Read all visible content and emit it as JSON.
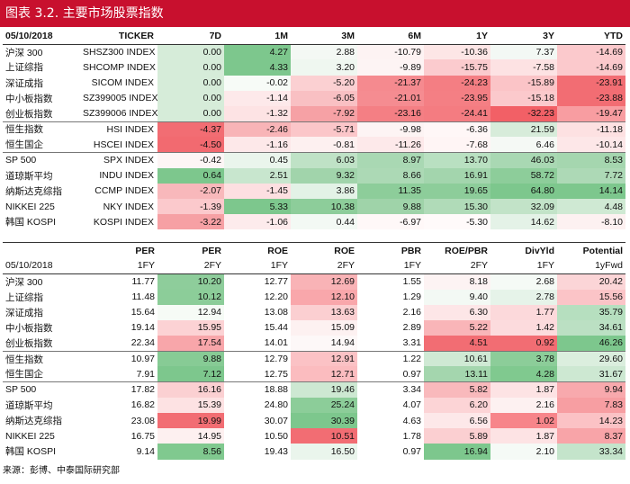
{
  "title": "图表 3.2. 主要市场股票指数",
  "returns": {
    "date": "05/10/2018",
    "headers": [
      "TICKER",
      "7D",
      "1M",
      "3M",
      "6M",
      "1Y",
      "3Y",
      "YTD"
    ],
    "rows": [
      {
        "name": "沪深 300",
        "ticker": "SHSZ300 INDEX",
        "values": [
          "0.00",
          "4.27",
          "2.88",
          "-10.79",
          "-10.36",
          "7.37",
          "-14.69"
        ],
        "colors": [
          "#d6ecd9",
          "#7dc78d",
          "#f4f8f4",
          "#fdf3f3",
          "#fde6e6",
          "#f3f8f4",
          "#fbc9cc"
        ]
      },
      {
        "name": "上证综指",
        "ticker": "SHCOMP INDEX",
        "values": [
          "0.00",
          "4.33",
          "3.20",
          "-9.89",
          "-15.75",
          "-7.58",
          "-14.69"
        ],
        "colors": [
          "#d6ecd9",
          "#7dc78d",
          "#eff7f0",
          "#fdf4f4",
          "#fbcbce",
          "#fde2e3",
          "#fbc9cc"
        ]
      },
      {
        "name": "深证成指",
        "ticker": "SICOM INDEX",
        "values": [
          "0.00",
          "-0.02",
          "-5.20",
          "-21.37",
          "-24.23",
          "-15.89",
          "-23.91"
        ],
        "colors": [
          "#d6ecd9",
          "#f7fbf7",
          "#fbd0d2",
          "#f58a8f",
          "#f47e83",
          "#fbc4c7",
          "#f26d73"
        ]
      },
      {
        "name": "中小板指数",
        "ticker": "SZ399005 INDEX",
        "values": [
          "0.00",
          "-1.14",
          "-6.05",
          "-21.01",
          "-23.95",
          "-15.18",
          "-23.88"
        ],
        "colors": [
          "#d6ecd9",
          "#fde9ea",
          "#f9c0c3",
          "#f58c91",
          "#f47f84",
          "#fbc9cc",
          "#f26d73"
        ]
      },
      {
        "name": "创业板指数",
        "ticker": "SZ399006 INDEX",
        "values": [
          "0.00",
          "-1.32",
          "-7.92",
          "-23.16",
          "-24.41",
          "-32.23",
          "-19.47"
        ],
        "colors": [
          "#d6ecd9",
          "#fde3e4",
          "#f6a1a5",
          "#f47f84",
          "#f47c81",
          "#f26066",
          "#f89da1"
        ]
      },
      {
        "name": "恒生指数",
        "ticker": "HSI INDEX",
        "values": [
          "-4.37",
          "-2.46",
          "-5.71",
          "-9.98",
          "-6.36",
          "21.59",
          "-11.18"
        ],
        "colors": [
          "#f26d73",
          "#f8b4b7",
          "#fbc6c9",
          "#fdf4f4",
          "#fff7f7",
          "#d7ecda",
          "#fde1e2"
        ]
      },
      {
        "name": "恒生国企",
        "ticker": "HSCEI INDEX",
        "values": [
          "-4.50",
          "-1.16",
          "-0.81",
          "-11.26",
          "-7.68",
          "6.46",
          "-10.14"
        ],
        "colors": [
          "#f26a70",
          "#fde8e9",
          "#fdf0f0",
          "#fde9ea",
          "#fff5f5",
          "#f5f9f5",
          "#fde7e8"
        ]
      },
      {
        "name": "SP 500",
        "ticker": "SPX INDEX",
        "values": [
          "-0.42",
          "0.45",
          "6.03",
          "8.97",
          "13.70",
          "46.03",
          "8.53"
        ],
        "colors": [
          "#fdf5f5",
          "#eaf5ec",
          "#bfe2c6",
          "#a9d8b3",
          "#b9e0c1",
          "#a9d8b3",
          "#a5d6af"
        ]
      },
      {
        "name": "道琼斯平均",
        "ticker": "INDU INDEX",
        "values": [
          "0.64",
          "2.51",
          "9.32",
          "8.66",
          "16.91",
          "58.72",
          "7.72"
        ],
        "colors": [
          "#7dc78d",
          "#c8e6ce",
          "#a1d4ab",
          "#acd9b5",
          "#a3d5ad",
          "#8dcd9a",
          "#add9b6"
        ]
      },
      {
        "name": "纳斯达克综指",
        "ticker": "CCMP INDEX",
        "values": [
          "-2.07",
          "-1.45",
          "3.86",
          "11.35",
          "19.65",
          "64.80",
          "14.14"
        ],
        "colors": [
          "#f8b8bb",
          "#fddfe1",
          "#e3f2e6",
          "#8dcd9a",
          "#8dcd9a",
          "#7dc78d",
          "#7dc78d"
        ]
      },
      {
        "name": "NIKKEI 225",
        "ticker": "NKY INDEX",
        "values": [
          "-1.39",
          "5.33",
          "10.38",
          "9.88",
          "15.30",
          "32.09",
          "4.48"
        ],
        "colors": [
          "#fbc9cc",
          "#7dc78d",
          "#8dcd9a",
          "#9fd3a9",
          "#b0dbb8",
          "#c2e3c8",
          "#cfe9d3"
        ]
      },
      {
        "name": "韩国 KOSPI",
        "ticker": "KOSPI INDEX",
        "values": [
          "-3.22",
          "-1.06",
          "0.44",
          "-6.97",
          "-5.30",
          "14.62",
          "-8.10"
        ],
        "colors": [
          "#f6a0a4",
          "#fdebec",
          "#f3f9f4",
          "#fff8f8",
          "#fffafa",
          "#e4f2e7",
          "#fdf1f1"
        ]
      }
    ]
  },
  "valuation": {
    "date": "05/10/2018",
    "headers": [
      "PER",
      "PER",
      "ROE",
      "ROE",
      "PBR",
      "ROE/PBR",
      "DivYld",
      "Potential"
    ],
    "subheaders": [
      "1FY",
      "2FY",
      "1FY",
      "2FY",
      "1FY",
      "2FY",
      "1FY",
      "1yFwd"
    ],
    "rows": [
      {
        "name": "沪深 300",
        "values": [
          "11.77",
          "10.20",
          "12.77",
          "12.69",
          "1.55",
          "8.18",
          "2.68",
          "20.42"
        ],
        "colors": [
          "#ffffff",
          "#8ecd9b",
          "#ffffff",
          "#f9b3b6",
          "#ffffff",
          "#fdf3f3",
          "#f5faf6",
          "#fbd5d7"
        ]
      },
      {
        "name": "上证综指",
        "values": [
          "11.48",
          "10.12",
          "12.20",
          "12.10",
          "1.29",
          "9.40",
          "2.78",
          "15.56"
        ],
        "colors": [
          "#ffffff",
          "#8ccd99",
          "#ffffff",
          "#f9a7ab",
          "#ffffff",
          "#f3f9f4",
          "#e6f3e9",
          "#fbc4c7"
        ]
      },
      {
        "name": "深证成指",
        "values": [
          "15.64",
          "12.94",
          "13.08",
          "13.63",
          "2.16",
          "6.30",
          "1.77",
          "35.79"
        ],
        "colors": [
          "#ffffff",
          "#f6fbf6",
          "#ffffff",
          "#fbcfd1",
          "#ffffff",
          "#fde6e7",
          "#fcd9db",
          "#b6dfbf"
        ]
      },
      {
        "name": "中小板指数",
        "values": [
          "19.14",
          "15.95",
          "15.44",
          "15.09",
          "2.89",
          "5.22",
          "1.42",
          "34.61"
        ],
        "colors": [
          "#ffffff",
          "#fcd2d4",
          "#ffffff",
          "#fdf1f1",
          "#ffffff",
          "#f9b5b8",
          "#fcdbdd",
          "#bbe0c3"
        ]
      },
      {
        "name": "创业板指数",
        "values": [
          "22.34",
          "17.54",
          "14.01",
          "14.94",
          "3.31",
          "4.51",
          "0.92",
          "46.26"
        ],
        "colors": [
          "#ffffff",
          "#f8a6aa",
          "#ffffff",
          "#fdf8f8",
          "#ffffff",
          "#f26d73",
          "#f26d73",
          "#7dc78d"
        ]
      },
      {
        "name": "恒生指数",
        "values": [
          "10.97",
          "9.88",
          "12.79",
          "12.91",
          "1.22",
          "10.61",
          "3.78",
          "29.60"
        ],
        "colors": [
          "#ffffff",
          "#87cb95",
          "#ffffff",
          "#fbc2c5",
          "#ffffff",
          "#cfe9d4",
          "#8ccd99",
          "#dbeede"
        ]
      },
      {
        "name": "恒生国企",
        "values": [
          "7.91",
          "7.12",
          "12.75",
          "12.71",
          "0.97",
          "13.11",
          "4.28",
          "31.67"
        ],
        "colors": [
          "#ffffff",
          "#7dc78d",
          "#ffffff",
          "#fbbcbf",
          "#ffffff",
          "#a4d6ae",
          "#80c98f",
          "#cde8d2"
        ]
      },
      {
        "name": "SP 500",
        "values": [
          "17.82",
          "16.16",
          "18.88",
          "19.46",
          "3.34",
          "5.82",
          "1.87",
          "9.94"
        ],
        "colors": [
          "#ffffff",
          "#fbd0d2",
          "#ffffff",
          "#cde8d2",
          "#ffffff",
          "#f9b9bc",
          "#fde3e4",
          "#f8a9ad"
        ]
      },
      {
        "name": "道琼斯平均",
        "values": [
          "16.82",
          "15.39",
          "24.80",
          "25.24",
          "4.07",
          "6.20",
          "2.16",
          "7.83"
        ],
        "colors": [
          "#ffffff",
          "#fde2e3",
          "#ffffff",
          "#8ccd99",
          "#ffffff",
          "#fcd4d6",
          "#fdf1f1",
          "#f79ea2"
        ]
      },
      {
        "name": "纳斯达克综指",
        "values": [
          "23.08",
          "19.99",
          "30.07",
          "30.39",
          "4.63",
          "6.56",
          "1.02",
          "14.23"
        ],
        "colors": [
          "#ffffff",
          "#f26d73",
          "#ffffff",
          "#7dc78d",
          "#ffffff",
          "#fde8e9",
          "#f7858a",
          "#fbc2c5"
        ]
      },
      {
        "name": "NIKKEI 225",
        "values": [
          "16.75",
          "14.95",
          "10.50",
          "10.51",
          "1.78",
          "5.89",
          "1.87",
          "8.37"
        ],
        "colors": [
          "#ffffff",
          "#fdf0f0",
          "#ffffff",
          "#f26d73",
          "#ffffff",
          "#fbcfd1",
          "#fde3e4",
          "#f8a4a8"
        ]
      },
      {
        "name": "韩国 KOSPI",
        "values": [
          "9.14",
          "8.56",
          "19.43",
          "16.50",
          "0.97",
          "16.94",
          "2.10",
          "33.34"
        ],
        "colors": [
          "#ffffff",
          "#80c98f",
          "#ffffff",
          "#eaf5ec",
          "#ffffff",
          "#7dc78d",
          "#f5faf6",
          "#c4e4cb"
        ]
      }
    ]
  },
  "footer": "来源：彭博、中泰国际研究部"
}
